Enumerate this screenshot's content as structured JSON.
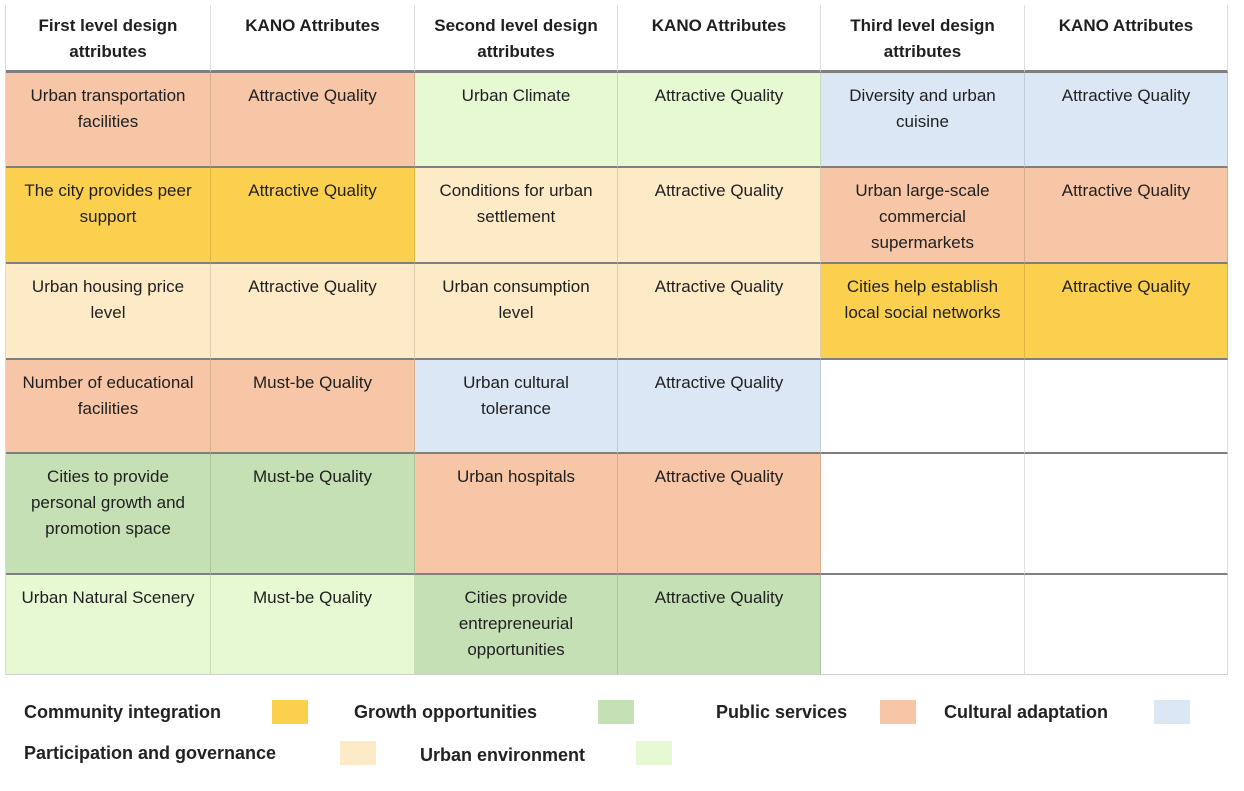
{
  "colors": {
    "community_integration": "#fcd04f",
    "growth_opportunities": "#c5e0b4",
    "public_services": "#f6c6a7",
    "cultural_adaptation": "#dce7f5",
    "participation_and_governance": "#fdebc8",
    "urban_environment": "#e6f9d3",
    "empty": "#ffffff"
  },
  "table": {
    "headers": [
      "First level design attributes",
      "KANO Attributes",
      "Second level design attributes",
      "KANO Attributes",
      "Third level design attributes",
      "KANO Attributes"
    ],
    "rows": [
      {
        "first": {
          "text": "Urban transportation facilities",
          "kano": "Attractive Quality",
          "color": "public_services"
        },
        "second": {
          "text": "Urban Climate",
          "kano": "Attractive Quality",
          "color": "urban_environment"
        },
        "third": {
          "text": "Diversity and urban cuisine",
          "kano": "Attractive Quality",
          "color": "cultural_adaptation"
        }
      },
      {
        "first": {
          "text": "The city provides peer support",
          "kano": "Attractive Quality",
          "color": "community_integration"
        },
        "second": {
          "text": "Conditions for urban settlement",
          "kano": "Attractive Quality",
          "color": "participation_and_governance"
        },
        "third": {
          "text": "Urban large-scale commercial supermarkets",
          "kano": "Attractive Quality",
          "color": "public_services"
        }
      },
      {
        "first": {
          "text": "Urban housing price level",
          "kano": "Attractive Quality",
          "color": "participation_and_governance"
        },
        "second": {
          "text": "Urban consumption level",
          "kano": "Attractive Quality",
          "color": "participation_and_governance"
        },
        "third": {
          "text": "Cities help establish local social networks",
          "kano": "Attractive Quality",
          "color": "community_integration"
        }
      },
      {
        "first": {
          "text": "Number of educational facilities",
          "kano": "Must-be Quality",
          "color": "public_services"
        },
        "second": {
          "text": "Urban cultural tolerance",
          "kano": "Attractive Quality",
          "color": "cultural_adaptation"
        },
        "third": {
          "text": "",
          "kano": "",
          "color": "empty"
        }
      },
      {
        "first": {
          "text": "Cities to provide personal growth and promotion space",
          "kano": "Must-be Quality",
          "color": "growth_opportunities"
        },
        "second": {
          "text": "Urban hospitals",
          "kano": "Attractive Quality",
          "color": "public_services"
        },
        "third": {
          "text": "",
          "kano": "",
          "color": "empty"
        }
      },
      {
        "first": {
          "text": "Urban Natural Scenery",
          "kano": "Must-be Quality",
          "color": "urban_environment"
        },
        "second": {
          "text": "Cities provide entrepreneurial opportunities",
          "kano": "Attractive Quality",
          "color": "growth_opportunities"
        },
        "third": {
          "text": "",
          "kano": "",
          "color": "empty"
        }
      }
    ]
  },
  "legend": [
    {
      "key": "community_integration",
      "label": "Community integration"
    },
    {
      "key": "growth_opportunities",
      "label": "Growth opportunities"
    },
    {
      "key": "public_services",
      "label": "Public services"
    },
    {
      "key": "cultural_adaptation",
      "label": "Cultural adaptation"
    },
    {
      "key": "participation_and_governance",
      "label": "Participation and governance"
    },
    {
      "key": "urban_environment",
      "label": "Urban environment"
    }
  ]
}
